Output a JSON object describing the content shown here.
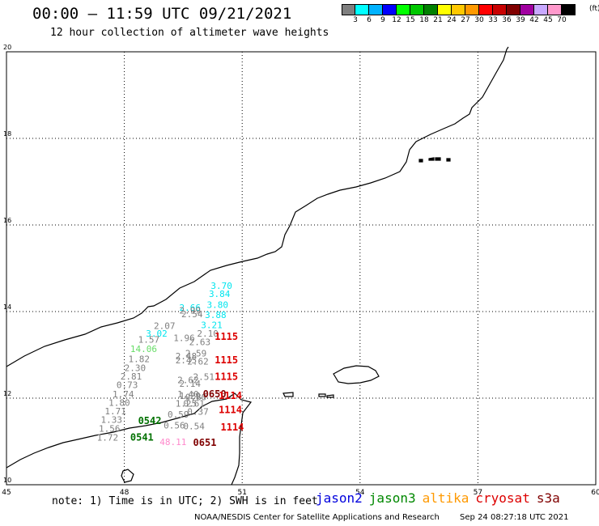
{
  "header": {
    "title": "00:00 – 11:59 UTC 09/21/2021",
    "subtitle": "12 hour collection of altimeter wave heights"
  },
  "legend": {
    "colors": [
      "#7f7f7f",
      "#00ffff",
      "#00b2ff",
      "#0000ff",
      "#00ff00",
      "#00c800",
      "#008000",
      "#ffff00",
      "#ffc800",
      "#ff9900",
      "#ff0000",
      "#c80000",
      "#800000",
      "#a000a0",
      "#c8a8ff",
      "#ff99cc",
      "#000000"
    ],
    "labels": [
      "3",
      "6",
      "9",
      "12",
      "15",
      "18",
      "21",
      "24",
      "27",
      "30",
      "33",
      "36",
      "39",
      "42",
      "45",
      "70"
    ],
    "unit": "(ft)"
  },
  "axes": {
    "lon_ticks": [
      "45",
      "48",
      "51",
      "54",
      "57",
      "60"
    ],
    "lat_ticks": [
      "20",
      "18",
      "16",
      "14",
      "12",
      "10"
    ],
    "lon_range": [
      45,
      60
    ],
    "lat_range": [
      10,
      20
    ]
  },
  "observations": [
    {
      "lat": 14.52,
      "lon": 50.2,
      "v": "3.70",
      "c": "#00e5ee"
    },
    {
      "lat": 14.34,
      "lon": 50.15,
      "v": "3.84",
      "c": "#00e5ee"
    },
    {
      "lat": 14.08,
      "lon": 50.1,
      "v": "3.80",
      "c": "#00e5ee"
    },
    {
      "lat": 14.02,
      "lon": 49.4,
      "v": "2.66",
      "c": "#00e5ee"
    },
    {
      "lat": 13.95,
      "lon": 49.4,
      "v": "2.99",
      "c": "#7f7f7f"
    },
    {
      "lat": 13.87,
      "lon": 49.45,
      "v": "2.54",
      "c": "#7f7f7f"
    },
    {
      "lat": 13.85,
      "lon": 50.05,
      "v": "3.88",
      "c": "#00e5ee"
    },
    {
      "lat": 13.62,
      "lon": 49.95,
      "v": "3.21",
      "c": "#00e5ee"
    },
    {
      "lat": 13.6,
      "lon": 48.75,
      "v": "2.07",
      "c": "#7f7f7f"
    },
    {
      "lat": 13.42,
      "lon": 48.55,
      "v": "3.02",
      "c": "#00e5ee"
    },
    {
      "lat": 13.42,
      "lon": 49.85,
      "v": "2.10",
      "c": "#7f7f7f"
    },
    {
      "lat": 13.32,
      "lon": 49.25,
      "v": "1.96",
      "c": "#7f7f7f"
    },
    {
      "lat": 13.28,
      "lon": 48.35,
      "v": "1.57",
      "c": "#7f7f7f"
    },
    {
      "lat": 13.22,
      "lon": 49.65,
      "v": "2.63",
      "c": "#7f7f7f"
    },
    {
      "lat": 13.07,
      "lon": 48.15,
      "v": "14.06",
      "c": "#66dd66"
    },
    {
      "lat": 12.96,
      "lon": 49.55,
      "v": "2.59",
      "c": "#7f7f7f"
    },
    {
      "lat": 12.9,
      "lon": 49.3,
      "v": "2.48",
      "c": "#7f7f7f"
    },
    {
      "lat": 12.83,
      "lon": 48.1,
      "v": "1.82",
      "c": "#7f7f7f"
    },
    {
      "lat": 12.8,
      "lon": 49.3,
      "v": "2.45",
      "c": "#7f7f7f"
    },
    {
      "lat": 12.78,
      "lon": 49.6,
      "v": "2.62",
      "c": "#7f7f7f"
    },
    {
      "lat": 12.63,
      "lon": 48.0,
      "v": "2.30",
      "c": "#7f7f7f"
    },
    {
      "lat": 12.42,
      "lon": 49.75,
      "v": "2.51",
      "c": "#7f7f7f"
    },
    {
      "lat": 12.43,
      "lon": 47.9,
      "v": "2.81",
      "c": "#7f7f7f"
    },
    {
      "lat": 12.35,
      "lon": 49.35,
      "v": "2.62",
      "c": "#7f7f7f"
    },
    {
      "lat": 12.26,
      "lon": 49.4,
      "v": "2.14",
      "c": "#7f7f7f"
    },
    {
      "lat": 12.23,
      "lon": 47.8,
      "v": "0.73",
      "c": "#7f7f7f"
    },
    {
      "lat": 12.02,
      "lon": 47.7,
      "v": "1.74",
      "c": "#7f7f7f"
    },
    {
      "lat": 12.02,
      "lon": 49.35,
      "v": "1.40",
      "c": "#7f7f7f"
    },
    {
      "lat": 11.98,
      "lon": 49.4,
      "v": "1.29",
      "c": "#7f7f7f"
    },
    {
      "lat": 11.95,
      "lon": 49.55,
      "v": "0.80",
      "c": "#7f7f7f"
    },
    {
      "lat": 11.82,
      "lon": 47.6,
      "v": "1.80",
      "c": "#7f7f7f"
    },
    {
      "lat": 11.8,
      "lon": 49.3,
      "v": "1.25",
      "c": "#7f7f7f"
    },
    {
      "lat": 11.8,
      "lon": 49.5,
      "v": "0.61",
      "c": "#7f7f7f"
    },
    {
      "lat": 11.63,
      "lon": 47.5,
      "v": "1.71",
      "c": "#7f7f7f"
    },
    {
      "lat": 11.62,
      "lon": 49.6,
      "v": "0.37",
      "c": "#7f7f7f"
    },
    {
      "lat": 11.55,
      "lon": 49.1,
      "v": "0.59",
      "c": "#7f7f7f"
    },
    {
      "lat": 11.43,
      "lon": 47.4,
      "v": "1.33",
      "c": "#7f7f7f"
    },
    {
      "lat": 11.3,
      "lon": 49.0,
      "v": "0.56",
      "c": "#7f7f7f"
    },
    {
      "lat": 11.28,
      "lon": 49.5,
      "v": "0.54",
      "c": "#7f7f7f"
    },
    {
      "lat": 11.22,
      "lon": 47.35,
      "v": "1.56",
      "c": "#7f7f7f"
    },
    {
      "lat": 11.02,
      "lon": 47.3,
      "v": "1.72",
      "c": "#7f7f7f"
    },
    {
      "lat": 10.92,
      "lon": 48.9,
      "v": "48.11",
      "c": "#ff88cc"
    },
    {
      "lat": 13.35,
      "lon": 50.3,
      "v": "1115",
      "c": "#dd0000",
      "bold": true
    },
    {
      "lat": 12.8,
      "lon": 50.3,
      "v": "1115",
      "c": "#dd0000",
      "bold": true
    },
    {
      "lat": 12.42,
      "lon": 50.3,
      "v": "1115",
      "c": "#dd0000",
      "bold": true
    },
    {
      "lat": 12.02,
      "lon": 50.0,
      "v": "0650",
      "c": "#800000",
      "bold": true
    },
    {
      "lat": 11.98,
      "lon": 50.4,
      "v": "1114",
      "c": "#dd0000",
      "bold": true
    },
    {
      "lat": 11.65,
      "lon": 50.4,
      "v": "1114",
      "c": "#dd0000",
      "bold": true
    },
    {
      "lat": 11.25,
      "lon": 50.45,
      "v": "1114",
      "c": "#dd0000",
      "bold": true
    },
    {
      "lat": 11.4,
      "lon": 48.35,
      "v": "0542",
      "c": "#007000",
      "bold": true
    },
    {
      "lat": 11.02,
      "lon": 48.15,
      "v": "0541",
      "c": "#007000",
      "bold": true
    },
    {
      "lat": 10.9,
      "lon": 49.75,
      "v": "0651",
      "c": "#800000",
      "bold": true
    }
  ],
  "footer": {
    "note": "note: 1) Time is in UTC; 2) SWH is in feet",
    "satellites": [
      {
        "name": "jason2",
        "color": "#0000dd"
      },
      {
        "name": "jason3",
        "color": "#008800"
      },
      {
        "name": "altika",
        "color": "#ff9900"
      },
      {
        "name": "cryosat",
        "color": "#dd0000"
      },
      {
        "name": "s3a",
        "color": "#800000"
      }
    ],
    "credit": "NOAA/NESDIS Center for Satellite Applications and Research",
    "timestamp": "Sep 24 08:27:18 UTC 2021"
  }
}
